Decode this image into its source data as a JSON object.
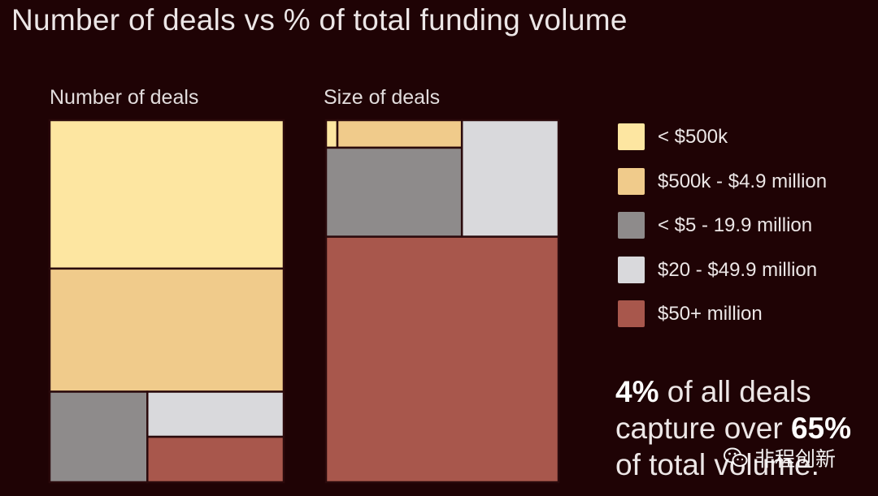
{
  "chart_data": {
    "type": "treemap",
    "title": "Number of deals vs % of total funding volume",
    "panels": [
      {
        "label": "Number of deals",
        "segments": [
          {
            "category": "< $500k",
            "share": 0.41
          },
          {
            "category": "$500k - $4.9 million",
            "share": 0.34
          },
          {
            "category": "< $5 - 19.9 million",
            "share": 0.12
          },
          {
            "category": "$20 - $49.9 million",
            "share": 0.09
          },
          {
            "category": "$50+ million",
            "share": 0.04
          }
        ]
      },
      {
        "label": "Size of deals",
        "segments": [
          {
            "category": "< $500k",
            "share": 0.01
          },
          {
            "category": "$500k - $4.9 million",
            "share": 0.07
          },
          {
            "category": "< $5 - 19.9 million",
            "share": 0.14
          },
          {
            "category": "$20 - $49.9 million",
            "share": 0.13
          },
          {
            "category": "$50+ million",
            "share": 0.65
          }
        ]
      }
    ],
    "legend": [
      {
        "label": "< $500k",
        "color": "#fde6a1"
      },
      {
        "label": "$500k - $4.9 million",
        "color": "#f0cb8b"
      },
      {
        "label": "< $5 - 19.9 million",
        "color": "#8e8b8b"
      },
      {
        "label": "$20 - $49.9 million",
        "color": "#d9d9dc"
      },
      {
        "label": "$50+ million",
        "color": "#a8574c"
      }
    ]
  },
  "callout": {
    "pct_deals": "4%",
    "text1": " of all deals",
    "text2": "capture over ",
    "pct_volume": "65%",
    "text3": "of total volume."
  },
  "watermark": {
    "text": "非程创新"
  },
  "colors": {
    "background": "#1f0305",
    "border": "#2a0a0c"
  }
}
